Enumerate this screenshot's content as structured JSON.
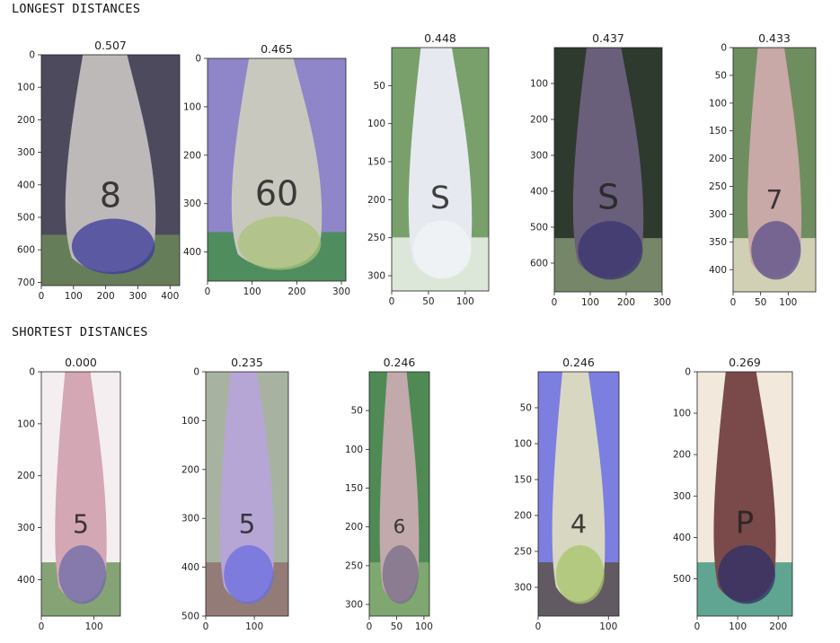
{
  "sections": {
    "longest_title": "LONGEST DISTANCES",
    "shortest_title": "SHORTEST DISTANCES"
  },
  "chart_data": [
    {
      "type": "image",
      "group": "longest",
      "title": "0.507",
      "label": "8",
      "xlim": [
        0,
        430
      ],
      "ylim": [
        710,
        0
      ],
      "xticks": [
        0,
        100,
        200,
        300,
        400
      ],
      "yticks": [
        0,
        100,
        200,
        300,
        400,
        500,
        600,
        700
      ],
      "colors": {
        "bg": "#4d4a5e",
        "head": "#bdb9b8",
        "sole": "#3c3a9c",
        "accent": "#6f8f5a"
      }
    },
    {
      "type": "image",
      "group": "longest",
      "title": "0.465",
      "label": "60",
      "xlim": [
        0,
        310
      ],
      "ylim": [
        460,
        0
      ],
      "xticks": [
        0,
        100,
        200,
        300
      ],
      "yticks": [
        0,
        100,
        200,
        300,
        400
      ],
      "colors": {
        "bg": "#8e86c8",
        "head": "#c9c8bf",
        "sole": "#a9c37a",
        "accent": "#3a8f3c"
      }
    },
    {
      "type": "image",
      "group": "longest",
      "title": "0.448",
      "label": "S",
      "xlim": [
        0,
        132
      ],
      "ylim": [
        320,
        0
      ],
      "xticks": [
        0,
        50,
        100
      ],
      "yticks": [
        50,
        100,
        150,
        200,
        250,
        300
      ],
      "colors": {
        "bg": "#79a06a",
        "head": "#e6eaf0",
        "sole": "#f2f4f6",
        "accent": "#ffffff"
      }
    },
    {
      "type": "image",
      "group": "longest",
      "title": "0.437",
      "label": "S",
      "xlim": [
        0,
        300
      ],
      "ylim": [
        680,
        0
      ],
      "xticks": [
        0,
        100,
        200,
        300
      ],
      "yticks": [
        100,
        200,
        300,
        400,
        500,
        600
      ],
      "colors": {
        "bg": "#2f3a2f",
        "head": "#6a5f7a",
        "sole": "#3a3370",
        "accent": "#8fa07c"
      }
    },
    {
      "type": "image",
      "group": "longest",
      "title": "0.433",
      "label": "7",
      "xlim": [
        0,
        150
      ],
      "ylim": [
        440,
        0
      ],
      "xticks": [
        0,
        50,
        100
      ],
      "yticks": [
        0,
        50,
        100,
        150,
        200,
        250,
        300,
        350,
        400
      ],
      "colors": {
        "bg": "#6f8e5f",
        "head": "#c9a8a8",
        "sole": "#5a4e8a",
        "accent": "#f2e6d0"
      }
    },
    {
      "type": "image",
      "group": "shortest",
      "title": "0.000",
      "label": "5",
      "xlim": [
        0,
        150
      ],
      "ylim": [
        470,
        0
      ],
      "xticks": [
        0,
        100
      ],
      "yticks": [
        0,
        100,
        200,
        300,
        400
      ],
      "colors": {
        "bg": "#f5eef0",
        "head": "#d4a7b4",
        "sole": "#6c6aa8",
        "accent": "#5f8a4c"
      }
    },
    {
      "type": "image",
      "group": "shortest",
      "title": "0.235",
      "label": "5",
      "xlim": [
        0,
        170
      ],
      "ylim": [
        500,
        0
      ],
      "xticks": [
        0,
        100
      ],
      "yticks": [
        0,
        100,
        200,
        300,
        400,
        500
      ],
      "colors": {
        "bg": "#a7b3a0",
        "head": "#b6a6d6",
        "sole": "#6a6ee0",
        "accent": "#8c6a6a"
      }
    },
    {
      "type": "image",
      "group": "shortest",
      "title": "0.246",
      "label": "6",
      "xlim": [
        0,
        110
      ],
      "ylim": [
        315,
        0
      ],
      "xticks": [
        0,
        50,
        100
      ],
      "yticks": [
        50,
        100,
        150,
        200,
        250,
        300
      ],
      "colors": {
        "bg": "#4f8a55",
        "head": "#c2a9ab",
        "sole": "#7a6e8a",
        "accent": "#8fb07a"
      }
    },
    {
      "type": "image",
      "group": "shortest",
      "title": "0.246",
      "label": "4",
      "xlim": [
        0,
        115
      ],
      "ylim": [
        340,
        0
      ],
      "xticks": [
        0,
        100
      ],
      "yticks": [
        50,
        100,
        150,
        200,
        250,
        300
      ],
      "colors": {
        "bg": "#7c7ee0",
        "head": "#d8d7c2",
        "sole": "#a8c46a",
        "accent": "#5a4f3a"
      }
    },
    {
      "type": "image",
      "group": "shortest",
      "title": "0.269",
      "label": "P",
      "xlim": [
        0,
        235
      ],
      "ylim": [
        590,
        0
      ],
      "xticks": [
        0,
        100,
        200
      ],
      "yticks": [
        0,
        100,
        200,
        300,
        400,
        500
      ],
      "colors": {
        "bg": "#f2e8dc",
        "head": "#7a4a4a",
        "sole": "#2f2f6a",
        "accent": "#2f8f7a"
      }
    }
  ]
}
